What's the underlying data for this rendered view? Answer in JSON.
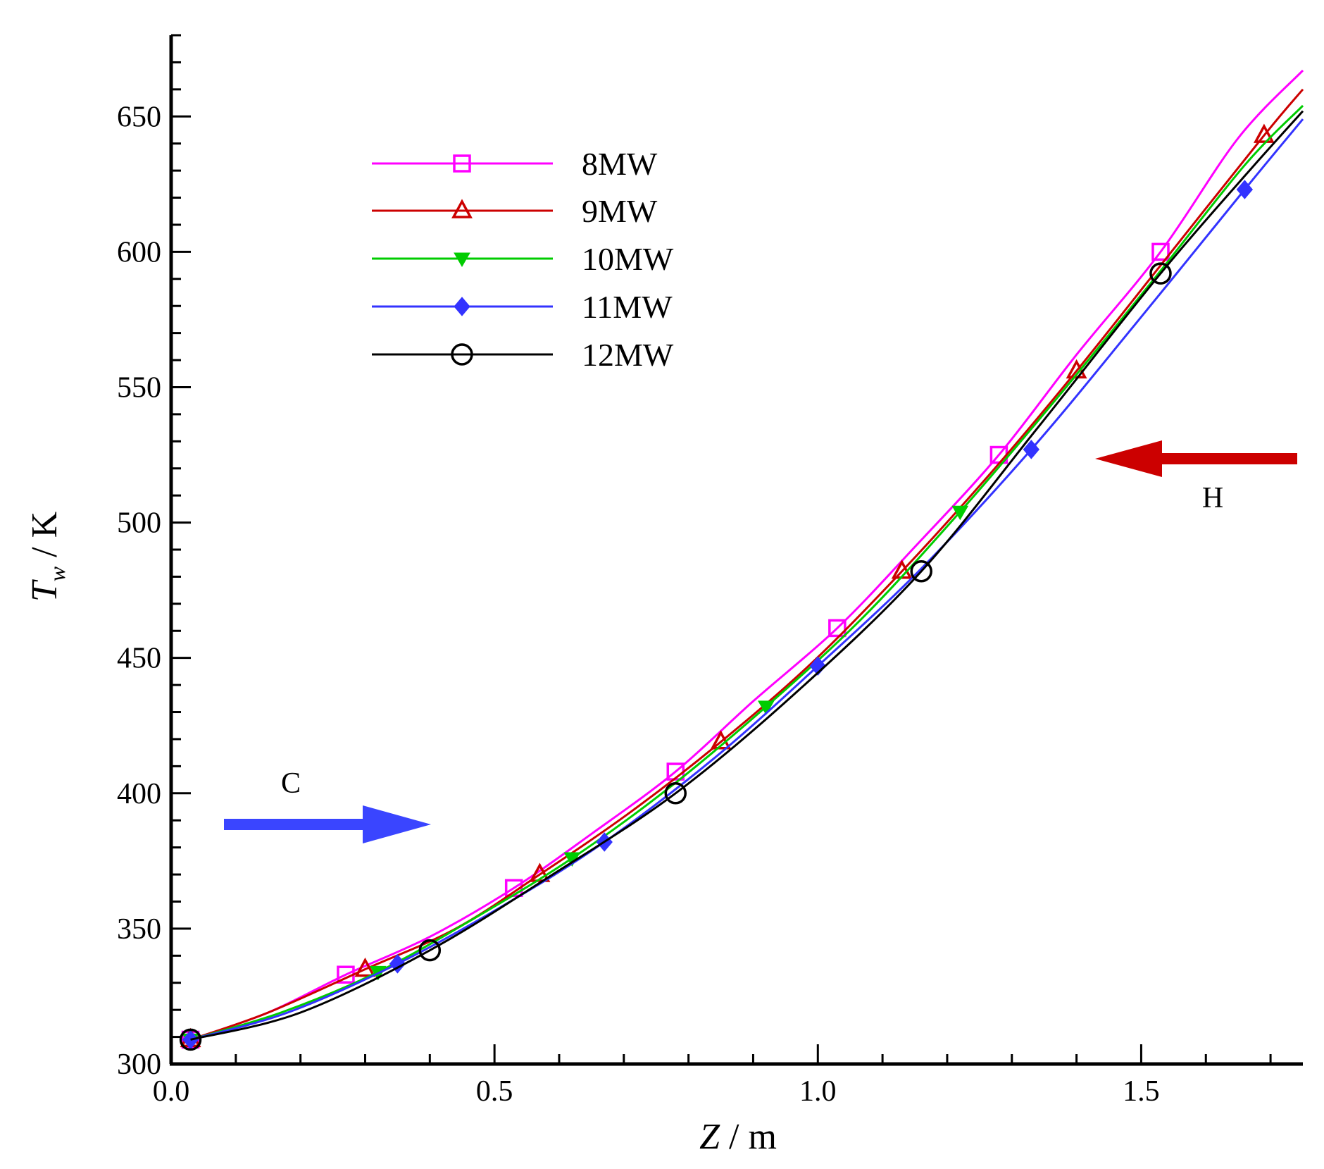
{
  "chart_data": {
    "type": "line",
    "title": "",
    "xlabel": "Z / m",
    "ylabel": "Tw / K",
    "xlabel_parts": {
      "var": "Z",
      "unit": " / m"
    },
    "ylabel_parts": {
      "var": "T",
      "sub": "w",
      "unit": " / K"
    },
    "xlim": [
      0.0,
      1.75
    ],
    "ylim": [
      300,
      680
    ],
    "x_ticks": [
      0.0,
      0.5,
      1.0,
      1.5
    ],
    "x_tick_labels": [
      "0.0",
      "0.5",
      "1.0",
      "1.5"
    ],
    "y_ticks": [
      300,
      350,
      400,
      450,
      500,
      550,
      600,
      650
    ],
    "y_tick_labels": [
      "300",
      "350",
      "400",
      "450",
      "500",
      "550",
      "600",
      "650"
    ],
    "grid": false,
    "legend_position": "top-left",
    "series": [
      {
        "name": "8MW",
        "color": "#ff00ff",
        "marker": "square-open",
        "x": [
          0.03,
          0.15,
          0.27,
          0.4,
          0.53,
          0.65,
          0.78,
          0.9,
          1.03,
          1.15,
          1.28,
          1.4,
          1.53,
          1.65,
          1.75
        ],
        "y": [
          309,
          319,
          333,
          347,
          365,
          385,
          408,
          434,
          461,
          491,
          525,
          562,
          600,
          642,
          667
        ],
        "marker_x": [
          0.03,
          0.27,
          0.53,
          0.78,
          1.03,
          1.28,
          1.53
        ],
        "marker_y": [
          309,
          333,
          365,
          408,
          461,
          525,
          600
        ]
      },
      {
        "name": "9MW",
        "color": "#cc0000",
        "marker": "triangle-up-open",
        "x": [
          0.03,
          0.15,
          0.3,
          0.44,
          0.57,
          0.71,
          0.85,
          0.99,
          1.13,
          1.27,
          1.4,
          1.54,
          1.69,
          1.75
        ],
        "y": [
          309,
          319,
          335,
          350,
          370,
          393,
          419,
          448,
          482,
          519,
          556,
          598,
          643,
          660
        ],
        "marker_x": [
          0.03,
          0.3,
          0.57,
          0.85,
          1.13,
          1.4,
          1.69
        ],
        "marker_y": [
          309,
          335,
          370,
          419,
          482,
          556,
          643
        ]
      },
      {
        "name": "10MW",
        "color": "#00cc00",
        "marker": "triangle-down-filled",
        "x": [
          0.03,
          0.17,
          0.32,
          0.47,
          0.62,
          0.77,
          0.92,
          1.07,
          1.22,
          1.37,
          1.52,
          1.66,
          1.75
        ],
        "y": [
          309,
          319,
          334,
          354,
          376,
          402,
          432,
          465,
          504,
          546,
          590,
          632,
          654
        ],
        "marker_x": [
          0.03,
          0.32,
          0.62,
          0.92,
          1.22
        ],
        "marker_y": [
          309,
          334,
          376,
          432,
          504
        ]
      },
      {
        "name": "11MW",
        "color": "#3333ff",
        "marker": "diamond-filled",
        "x": [
          0.03,
          0.18,
          0.35,
          0.51,
          0.67,
          0.84,
          1.0,
          1.16,
          1.33,
          1.49,
          1.66,
          1.75
        ],
        "y": [
          309,
          319,
          337,
          358,
          382,
          413,
          447,
          483,
          527,
          573,
          623,
          649
        ],
        "marker_x": [
          0.03,
          0.35,
          0.67,
          1.0,
          1.33,
          1.66
        ],
        "marker_y": [
          309,
          337,
          382,
          447,
          527,
          623
        ]
      },
      {
        "name": "12MW",
        "color": "#000000",
        "marker": "circle-open",
        "x": [
          0.03,
          0.2,
          0.4,
          0.59,
          0.78,
          0.97,
          1.16,
          1.34,
          1.53,
          1.66,
          1.75
        ],
        "y": [
          309,
          319,
          342,
          370,
          400,
          438,
          482,
          535,
          592,
          628,
          652
        ],
        "marker_x": [
          0.03,
          0.4,
          0.78,
          1.16,
          1.53
        ],
        "marker_y": [
          309,
          342,
          400,
          482,
          592
        ]
      }
    ],
    "annotations": [
      {
        "label": "C",
        "arrow_color": "#3333ff",
        "direction": "right"
      },
      {
        "label": "H",
        "arrow_color": "#cc0000",
        "direction": "left"
      }
    ]
  }
}
